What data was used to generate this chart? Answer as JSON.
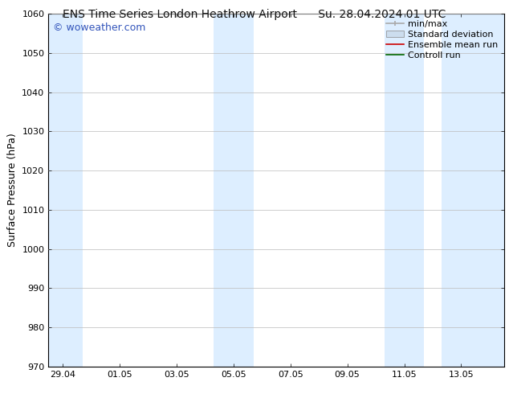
{
  "title_left": "ENS Time Series London Heathrow Airport",
  "title_right": "Su. 28.04.2024 01 UTC",
  "ylabel": "Surface Pressure (hPa)",
  "ylim": [
    970,
    1060
  ],
  "yticks": [
    970,
    980,
    990,
    1000,
    1010,
    1020,
    1030,
    1040,
    1050,
    1060
  ],
  "xlim": [
    0,
    16
  ],
  "xtick_labels": [
    "29.04",
    "01.05",
    "03.05",
    "05.05",
    "07.05",
    "09.05",
    "11.05",
    "13.05"
  ],
  "xtick_positions": [
    0.5,
    2.5,
    4.5,
    6.5,
    8.5,
    10.5,
    12.5,
    14.5
  ],
  "watermark": "© woweather.com",
  "watermark_color": "#3355bb",
  "background_color": "#ffffff",
  "plot_bg_color": "#ffffff",
  "shaded_bands": [
    {
      "x_start": 0.0,
      "x_end": 1.2,
      "color": "#ddeeff"
    },
    {
      "x_start": 5.8,
      "x_end": 7.2,
      "color": "#ddeeff"
    },
    {
      "x_start": 11.8,
      "x_end": 13.2,
      "color": "#ddeeff"
    },
    {
      "x_start": 13.8,
      "x_end": 16.0,
      "color": "#ddeeff"
    }
  ],
  "legend_items": [
    {
      "label": "min/max",
      "color": "#aaaaaa",
      "type": "errorbar"
    },
    {
      "label": "Standard deviation",
      "color": "#ccddee",
      "type": "bar"
    },
    {
      "label": "Ensemble mean run",
      "color": "#cc0000",
      "type": "line"
    },
    {
      "label": "Controll run",
      "color": "#006600",
      "type": "line"
    }
  ],
  "title_fontsize": 10,
  "axis_label_fontsize": 9,
  "tick_fontsize": 8,
  "legend_fontsize": 8,
  "watermark_fontsize": 9,
  "grid_color": "#bbbbbb",
  "spine_color": "#000000"
}
